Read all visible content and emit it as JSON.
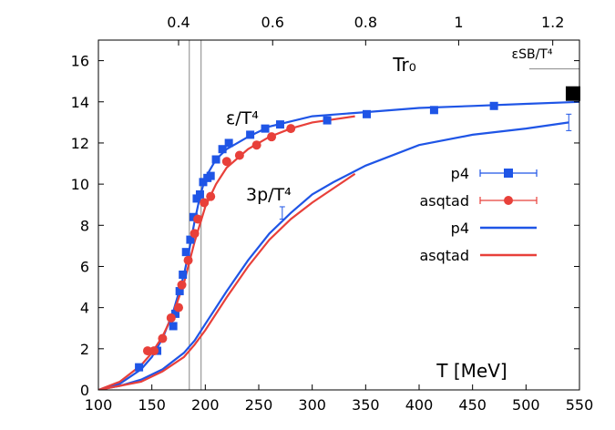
{
  "chart_data": {
    "type": "line",
    "title": "",
    "xlabel": "T [MeV]",
    "x2label": "Tr₀",
    "ylabel": "",
    "xlim": [
      100,
      550
    ],
    "ylim": [
      0,
      17
    ],
    "x_ticks": [
      100,
      150,
      200,
      250,
      300,
      350,
      400,
      450,
      500,
      550
    ],
    "y_ticks": [
      0,
      2,
      4,
      6,
      8,
      10,
      12,
      14,
      16
    ],
    "x2_ticks": [
      {
        "label": "0.4",
        "T": 175
      },
      {
        "label": "0.6",
        "T": 263
      },
      {
        "label": "0.8",
        "T": 350
      },
      {
        "label": "1",
        "T": 437
      },
      {
        "label": "1.2",
        "T": 525
      }
    ],
    "annotations": {
      "energy": "ε/T⁴",
      "pressure": "3p/T⁴",
      "stefan_boltzmann": "εSB/T⁴",
      "tr0": "Tr₀"
    },
    "stefan_boltzmann_limit": {
      "x_start": 503,
      "x_end": 550,
      "y": 15.6
    },
    "transition_lines": [
      185,
      196
    ],
    "sb_marker": {
      "x": 544,
      "y": 14.4
    },
    "legend": {
      "position": "right",
      "entries": [
        {
          "label": "p4",
          "style": "points-square",
          "color": "#1f55e6"
        },
        {
          "label": "asqtad",
          "style": "points-circle",
          "color": "#e8403a"
        },
        {
          "label": "p4",
          "style": "line",
          "color": "#1f55e6"
        },
        {
          "label": "asqtad",
          "style": "line",
          "color": "#e8403a"
        }
      ]
    },
    "series": [
      {
        "name": "p4",
        "kind": "points",
        "marker": "square",
        "color": "#1f55e6",
        "x": [
          138,
          155,
          170,
          172,
          176,
          179,
          182,
          186,
          189,
          192,
          195,
          198,
          202,
          205,
          210,
          216,
          222,
          242,
          256,
          270,
          314,
          351,
          414,
          470
        ],
        "y": [
          1.1,
          1.9,
          3.1,
          3.7,
          4.8,
          5.6,
          6.7,
          7.3,
          8.4,
          9.3,
          9.5,
          10.1,
          10.3,
          10.4,
          11.2,
          11.7,
          12.0,
          12.4,
          12.7,
          12.9,
          13.1,
          13.4,
          13.6,
          13.8
        ]
      },
      {
        "name": "asqtad",
        "kind": "points",
        "marker": "circle",
        "color": "#e8403a",
        "x": [
          146,
          152,
          160,
          168,
          175,
          178,
          184,
          190,
          193,
          199,
          205,
          220,
          232,
          248,
          262,
          280
        ],
        "y": [
          1.9,
          1.9,
          2.5,
          3.5,
          4.0,
          5.1,
          6.3,
          7.6,
          8.3,
          9.1,
          9.4,
          11.1,
          11.4,
          11.9,
          12.3,
          12.7
        ]
      },
      {
        "name": "p4 energy fit",
        "kind": "line",
        "color": "#1f55e6",
        "x": [
          100,
          120,
          140,
          150,
          160,
          170,
          180,
          185,
          190,
          195,
          200,
          210,
          220,
          240,
          260,
          300,
          350,
          400,
          450,
          500,
          550
        ],
        "y": [
          0.0,
          0.3,
          1.0,
          1.6,
          2.5,
          3.8,
          5.6,
          6.8,
          8.2,
          9.4,
          10.3,
          11.2,
          11.7,
          12.3,
          12.8,
          13.3,
          13.5,
          13.7,
          13.8,
          13.9,
          14.0
        ]
      },
      {
        "name": "asqtad energy fit",
        "kind": "line",
        "color": "#e8403a",
        "x": [
          100,
          120,
          140,
          150,
          160,
          170,
          180,
          190,
          200,
          210,
          220,
          240,
          260,
          280,
          300,
          340
        ],
        "y": [
          0.0,
          0.4,
          1.2,
          1.8,
          2.6,
          3.7,
          5.2,
          7.2,
          8.9,
          10.0,
          10.8,
          11.7,
          12.3,
          12.7,
          13.0,
          13.3
        ]
      },
      {
        "name": "p4 pressure fit",
        "kind": "line",
        "color": "#1f55e6",
        "x": [
          100,
          120,
          140,
          160,
          180,
          190,
          200,
          210,
          220,
          240,
          260,
          280,
          300,
          320,
          350,
          400,
          450,
          500,
          540
        ],
        "y": [
          0.0,
          0.2,
          0.5,
          1.0,
          1.8,
          2.4,
          3.2,
          4.0,
          4.8,
          6.3,
          7.6,
          8.6,
          9.5,
          10.1,
          10.9,
          11.9,
          12.4,
          12.7,
          13.0
        ]
      },
      {
        "name": "asqtad pressure fit",
        "kind": "line",
        "color": "#e8403a",
        "x": [
          100,
          120,
          140,
          160,
          180,
          190,
          200,
          210,
          220,
          240,
          260,
          280,
          300,
          320,
          340
        ],
        "y": [
          0.0,
          0.2,
          0.4,
          0.9,
          1.6,
          2.2,
          2.9,
          3.7,
          4.5,
          6.0,
          7.3,
          8.3,
          9.1,
          9.8,
          10.5
        ]
      }
    ],
    "error_bars": [
      {
        "series": "p4 pressure fit",
        "x": 540,
        "y": 13.0,
        "err": 0.4
      },
      {
        "series": "p4 pressure fit",
        "x": 272,
        "y": 8.6,
        "err": 0.3
      }
    ]
  }
}
